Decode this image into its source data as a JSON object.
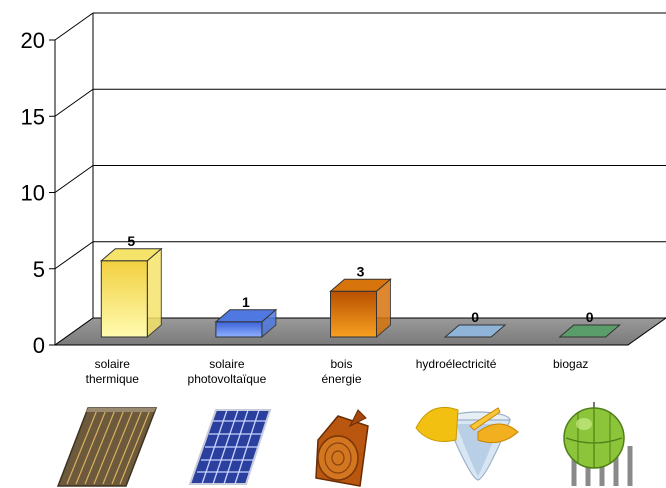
{
  "chart_data": {
    "type": "bar",
    "title": "",
    "xlabel": "",
    "ylabel": "",
    "ylim": [
      0,
      20
    ],
    "yticks": [
      0,
      5,
      10,
      15,
      20
    ],
    "grid": true,
    "three_d": true,
    "categories": [
      [
        "solaire",
        "thermique"
      ],
      [
        "solaire",
        "photovoltaïque"
      ],
      [
        "bois",
        "énergie"
      ],
      [
        "hydroélectricité"
      ],
      [
        "biogaz"
      ]
    ],
    "values": [
      5,
      1,
      3,
      0,
      0
    ],
    "data_labels": [
      "5",
      "1",
      "3",
      "0",
      "0"
    ],
    "bar_colors": [
      "#f6e36a",
      "#4f78e0",
      "#d8740c",
      "#8fb4d8",
      "#5a9c6a"
    ],
    "icons": [
      "solar-thermal-panel-icon",
      "photovoltaic-panel-icon",
      "wood-log-icon",
      "hydro-turbine-icon",
      "biogas-tank-icon"
    ]
  }
}
